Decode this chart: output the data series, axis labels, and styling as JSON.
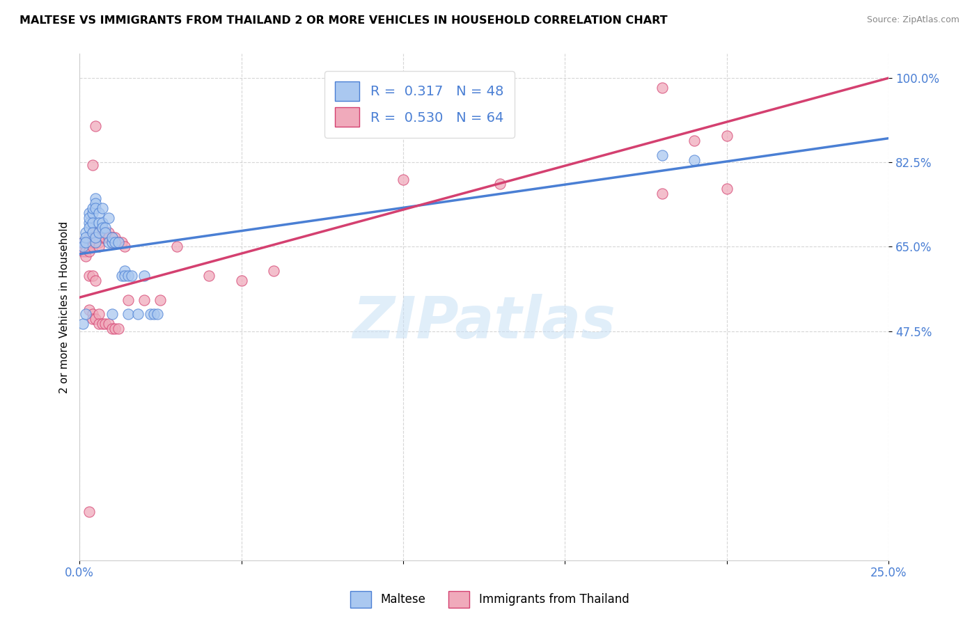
{
  "title": "MALTESE VS IMMIGRANTS FROM THAILAND 2 OR MORE VEHICLES IN HOUSEHOLD CORRELATION CHART",
  "source": "Source: ZipAtlas.com",
  "ylabel": "2 or more Vehicles in Household",
  "legend_blue_r": "0.317",
  "legend_blue_n": "48",
  "legend_pink_r": "0.530",
  "legend_pink_n": "64",
  "blue_color": "#aac8f0",
  "pink_color": "#f0aabb",
  "blue_line_color": "#4a7fd4",
  "pink_line_color": "#d44070",
  "watermark": "ZIPatlas",
  "blue_scatter": [
    [
      0.001,
      0.66
    ],
    [
      0.001,
      0.65
    ],
    [
      0.002,
      0.68
    ],
    [
      0.002,
      0.67
    ],
    [
      0.002,
      0.66
    ],
    [
      0.003,
      0.72
    ],
    [
      0.003,
      0.7
    ],
    [
      0.003,
      0.71
    ],
    [
      0.003,
      0.69
    ],
    [
      0.004,
      0.72
    ],
    [
      0.004,
      0.73
    ],
    [
      0.004,
      0.7
    ],
    [
      0.004,
      0.68
    ],
    [
      0.005,
      0.75
    ],
    [
      0.005,
      0.74
    ],
    [
      0.005,
      0.73
    ],
    [
      0.005,
      0.66
    ],
    [
      0.005,
      0.67
    ],
    [
      0.006,
      0.72
    ],
    [
      0.006,
      0.7
    ],
    [
      0.006,
      0.68
    ],
    [
      0.007,
      0.7
    ],
    [
      0.007,
      0.69
    ],
    [
      0.007,
      0.73
    ],
    [
      0.008,
      0.69
    ],
    [
      0.008,
      0.68
    ],
    [
      0.009,
      0.71
    ],
    [
      0.009,
      0.66
    ],
    [
      0.01,
      0.66
    ],
    [
      0.01,
      0.67
    ],
    [
      0.011,
      0.66
    ],
    [
      0.012,
      0.66
    ],
    [
      0.013,
      0.59
    ],
    [
      0.014,
      0.6
    ],
    [
      0.014,
      0.59
    ],
    [
      0.015,
      0.59
    ],
    [
      0.016,
      0.59
    ],
    [
      0.02,
      0.59
    ],
    [
      0.022,
      0.51
    ],
    [
      0.023,
      0.51
    ],
    [
      0.024,
      0.51
    ],
    [
      0.01,
      0.51
    ],
    [
      0.015,
      0.51
    ],
    [
      0.018,
      0.51
    ],
    [
      0.001,
      0.49
    ],
    [
      0.002,
      0.51
    ],
    [
      0.18,
      0.84
    ],
    [
      0.19,
      0.83
    ]
  ],
  "pink_scatter": [
    [
      0.001,
      0.66
    ],
    [
      0.001,
      0.65
    ],
    [
      0.001,
      0.64
    ],
    [
      0.002,
      0.66
    ],
    [
      0.002,
      0.65
    ],
    [
      0.002,
      0.64
    ],
    [
      0.002,
      0.63
    ],
    [
      0.003,
      0.67
    ],
    [
      0.003,
      0.66
    ],
    [
      0.003,
      0.65
    ],
    [
      0.003,
      0.64
    ],
    [
      0.004,
      0.68
    ],
    [
      0.004,
      0.66
    ],
    [
      0.004,
      0.65
    ],
    [
      0.005,
      0.68
    ],
    [
      0.005,
      0.67
    ],
    [
      0.005,
      0.66
    ],
    [
      0.006,
      0.67
    ],
    [
      0.006,
      0.66
    ],
    [
      0.006,
      0.65
    ],
    [
      0.007,
      0.68
    ],
    [
      0.007,
      0.67
    ],
    [
      0.008,
      0.68
    ],
    [
      0.008,
      0.67
    ],
    [
      0.009,
      0.68
    ],
    [
      0.009,
      0.67
    ],
    [
      0.01,
      0.67
    ],
    [
      0.01,
      0.66
    ],
    [
      0.011,
      0.67
    ],
    [
      0.012,
      0.66
    ],
    [
      0.013,
      0.66
    ],
    [
      0.014,
      0.65
    ],
    [
      0.003,
      0.52
    ],
    [
      0.004,
      0.51
    ],
    [
      0.004,
      0.5
    ],
    [
      0.005,
      0.5
    ],
    [
      0.006,
      0.51
    ],
    [
      0.006,
      0.49
    ],
    [
      0.007,
      0.49
    ],
    [
      0.008,
      0.49
    ],
    [
      0.009,
      0.49
    ],
    [
      0.01,
      0.48
    ],
    [
      0.011,
      0.48
    ],
    [
      0.012,
      0.48
    ],
    [
      0.003,
      0.59
    ],
    [
      0.004,
      0.59
    ],
    [
      0.005,
      0.58
    ],
    [
      0.02,
      0.54
    ],
    [
      0.003,
      0.1
    ],
    [
      0.03,
      0.65
    ],
    [
      0.04,
      0.59
    ],
    [
      0.05,
      0.58
    ],
    [
      0.06,
      0.6
    ],
    [
      0.004,
      0.82
    ],
    [
      0.005,
      0.9
    ],
    [
      0.18,
      0.98
    ],
    [
      0.19,
      0.87
    ],
    [
      0.2,
      0.88
    ],
    [
      0.18,
      0.76
    ],
    [
      0.2,
      0.77
    ],
    [
      0.1,
      0.79
    ],
    [
      0.13,
      0.78
    ],
    [
      0.015,
      0.54
    ],
    [
      0.025,
      0.54
    ]
  ],
  "xlim": [
    0.0,
    0.25
  ],
  "ylim": [
    0.0,
    1.05
  ],
  "blue_line_x": [
    0.0,
    0.25
  ],
  "blue_line_y": [
    0.635,
    0.875
  ],
  "pink_line_x": [
    0.0,
    0.25
  ],
  "pink_line_y": [
    0.545,
    1.0
  ],
  "ytick_vals": [
    0.475,
    0.65,
    0.825,
    1.0
  ],
  "ytick_labels": [
    "47.5%",
    "65.0%",
    "82.5%",
    "100.0%"
  ]
}
